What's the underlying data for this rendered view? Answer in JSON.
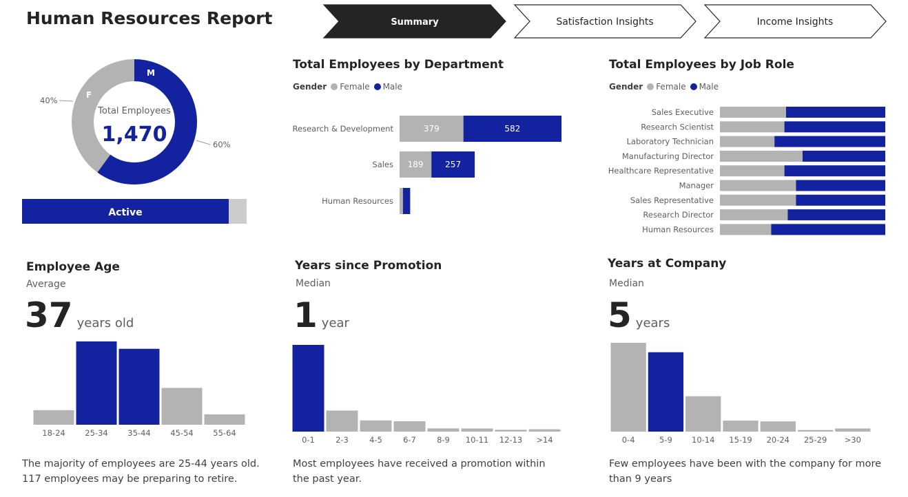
{
  "header": {
    "title": "Human Resources Report"
  },
  "nav": {
    "tabs": [
      {
        "label": "Summary",
        "active": true
      },
      {
        "label": "Satisfaction Insights",
        "active": false
      },
      {
        "label": "Income Insights",
        "active": false
      }
    ]
  },
  "colors": {
    "female": "#b3b3b3",
    "male": "#1323a0",
    "active_bg": "#cccccc",
    "tab_active": "#252423"
  },
  "donut": {
    "center_label": "Total Employees",
    "center_value": "1,470",
    "male_letter": "M",
    "female_letter": "F",
    "male_pct_label": "60%",
    "female_pct_label": "40%",
    "male_share": 0.6
  },
  "active_bar": {
    "label": "Active",
    "active_share": 0.92
  },
  "legend": {
    "title": "Gender",
    "female": "Female",
    "male": "Male"
  },
  "dept": {
    "title": "Total Employees by Department",
    "chart_data": {
      "type": "bar",
      "orientation": "horizontal",
      "stacked": true,
      "categories": [
        "Research & Development",
        "Sales",
        "Human Resources"
      ],
      "series": [
        {
          "name": "Female",
          "values": [
            379,
            189,
            20
          ]
        },
        {
          "name": "Male",
          "values": [
            582,
            257,
            43
          ]
        }
      ],
      "value_labels": [
        [
          "379",
          "582"
        ],
        [
          "189",
          "257"
        ],
        [
          "",
          ""
        ]
      ]
    }
  },
  "role": {
    "title": "Total Employees by Job Role",
    "chart_data": {
      "type": "bar",
      "orientation": "horizontal",
      "stacked": true,
      "normalized": true,
      "categories": [
        "Sales Executive",
        "Research Scientist",
        "Laboratory Technician",
        "Manufacturing Director",
        "Healthcare Representative",
        "Manager",
        "Sales Representative",
        "Research Director",
        "Human Resources"
      ],
      "series": [
        {
          "name": "Female",
          "values": [
            0.4,
            0.39,
            0.33,
            0.5,
            0.39,
            0.46,
            0.46,
            0.41,
            0.31
          ]
        },
        {
          "name": "Male",
          "values": [
            0.6,
            0.61,
            0.67,
            0.5,
            0.61,
            0.54,
            0.54,
            0.59,
            0.69
          ]
        }
      ]
    }
  },
  "age": {
    "title": "Employee Age",
    "stat_label": "Average",
    "value": "37",
    "unit": "years old",
    "note_line1": "The majority of employees are 25-44 years old.",
    "note_line2": "117 employees may be preparing to retire.",
    "chart_data": {
      "type": "bar",
      "categories": [
        "18-24",
        "25-34",
        "35-44",
        "45-54",
        "55-64"
      ],
      "values": [
        97,
        554,
        505,
        245,
        69
      ],
      "highlight": [
        false,
        true,
        true,
        false,
        false
      ]
    }
  },
  "promo": {
    "title": "Years since Promotion",
    "stat_label": "Median",
    "value": "1",
    "unit": "year",
    "note_line1": "Most employees have received a promotion within",
    "note_line2": "the past year.",
    "chart_data": {
      "type": "bar",
      "categories": [
        "0-1",
        "2-3",
        "4-5",
        "6-7",
        "8-9",
        "10-11",
        "12-13",
        ">14"
      ],
      "values": [
        938,
        228,
        121,
        112,
        35,
        34,
        20,
        25
      ],
      "highlight": [
        true,
        false,
        false,
        false,
        false,
        false,
        false,
        false
      ]
    }
  },
  "tenure": {
    "title": "Years at Company",
    "stat_label": "Median",
    "value": "5",
    "unit": "years",
    "note_line1": "Few employees have been with the company for more",
    "note_line2": "than 9 years",
    "chart_data": {
      "type": "bar",
      "categories": [
        "0-4",
        "5-9",
        "10-14",
        "15-19",
        "20-24",
        "25-29",
        ">30"
      ],
      "values": [
        565,
        505,
        225,
        70,
        65,
        10,
        20
      ],
      "highlight": [
        false,
        true,
        false,
        false,
        false,
        false,
        false
      ]
    }
  }
}
